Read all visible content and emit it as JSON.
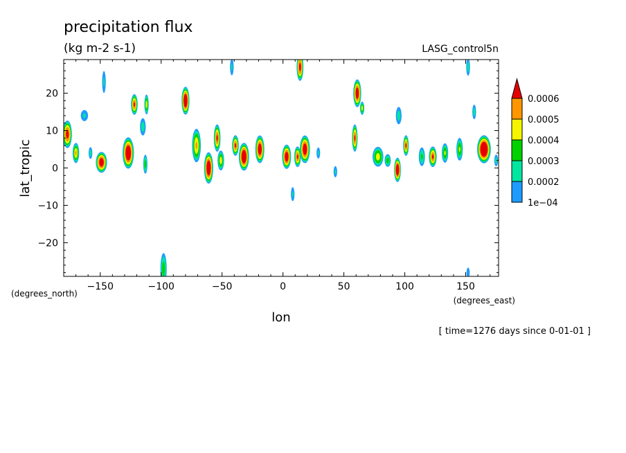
{
  "chart_data": {
    "type": "heatmap",
    "title": "precipitation flux",
    "units": "(kg m-2 s-1)",
    "dataset": "LASG_control5n",
    "xlabel": "lon",
    "ylabel": "lat_tropic",
    "x_unit_label": "(degrees_east)",
    "y_unit_label": "(degrees_north)",
    "time_label": "[ time=1276 days since 0-01-01 ]",
    "xlim": [
      -180,
      177
    ],
    "ylim": [
      -29,
      29
    ],
    "x_ticks": [
      -150,
      -100,
      -50,
      0,
      50,
      100,
      150
    ],
    "y_ticks": [
      -20,
      -10,
      0,
      10,
      20
    ],
    "levels": [
      0.0001,
      0.0002,
      0.0003,
      0.0004,
      0.0005,
      0.0006
    ],
    "level_labels": [
      "1e-04",
      "0.0002",
      "0.0003",
      "0.0004",
      "0.0005",
      "0.0006"
    ],
    "colors": [
      "#ffffff",
      "#1e9bff",
      "#00e6a0",
      "#00d200",
      "#f5f500",
      "#ff9600",
      "#e60000"
    ],
    "cells": [
      {
        "lon": -177,
        "lat": 9,
        "peak": 0.00065,
        "rx": 4,
        "ry": 4
      },
      {
        "lon": -170,
        "lat": 4,
        "peak": 0.0005,
        "rx": 3,
        "ry": 3
      },
      {
        "lon": -163,
        "lat": 14,
        "peak": 0.00022,
        "rx": 4,
        "ry": 2
      },
      {
        "lon": -158,
        "lat": 4,
        "peak": 0.00025,
        "rx": 2,
        "ry": 2
      },
      {
        "lon": -149,
        "lat": 1.5,
        "peak": 0.0007,
        "rx": 5,
        "ry": 3
      },
      {
        "lon": -147,
        "lat": 23,
        "peak": 0.00022,
        "rx": 2,
        "ry": 4
      },
      {
        "lon": -127,
        "lat": 4,
        "peak": 0.00075,
        "rx": 5,
        "ry": 4.5
      },
      {
        "lon": -122,
        "lat": 17,
        "peak": 0.0006,
        "rx": 3,
        "ry": 3
      },
      {
        "lon": -115,
        "lat": 11,
        "peak": 0.00025,
        "rx": 3,
        "ry": 3
      },
      {
        "lon": -112,
        "lat": 17,
        "peak": 0.00045,
        "rx": 2,
        "ry": 3
      },
      {
        "lon": -113,
        "lat": 1,
        "peak": 0.00035,
        "rx": 2,
        "ry": 3
      },
      {
        "lon": -98,
        "lat": -27,
        "peak": 0.00035,
        "rx": 3,
        "ry": 5
      },
      {
        "lon": -80,
        "lat": 18,
        "peak": 0.00075,
        "rx": 3.5,
        "ry": 4
      },
      {
        "lon": -71,
        "lat": 6,
        "peak": 0.0005,
        "rx": 4,
        "ry": 5
      },
      {
        "lon": -61,
        "lat": 0,
        "peak": 0.00075,
        "rx": 4,
        "ry": 4.5
      },
      {
        "lon": -54,
        "lat": 8,
        "peak": 0.0006,
        "rx": 3,
        "ry": 4
      },
      {
        "lon": -51,
        "lat": 2,
        "peak": 0.00045,
        "rx": 3,
        "ry": 3
      },
      {
        "lon": -39,
        "lat": 6,
        "peak": 0.0006,
        "rx": 3,
        "ry": 3
      },
      {
        "lon": -32,
        "lat": 3,
        "peak": 0.00075,
        "rx": 4.5,
        "ry": 4
      },
      {
        "lon": -19,
        "lat": 5,
        "peak": 0.0007,
        "rx": 4,
        "ry": 4
      },
      {
        "lon": -42,
        "lat": 27,
        "peak": 0.00022,
        "rx": 2,
        "ry": 3
      },
      {
        "lon": 3,
        "lat": 3,
        "peak": 0.0007,
        "rx": 4,
        "ry": 3.5
      },
      {
        "lon": 12,
        "lat": 3,
        "peak": 0.0006,
        "rx": 3,
        "ry": 3
      },
      {
        "lon": 18,
        "lat": 5,
        "peak": 0.0007,
        "rx": 4.5,
        "ry": 4
      },
      {
        "lon": 14,
        "lat": 27,
        "peak": 0.00065,
        "rx": 3,
        "ry": 4
      },
      {
        "lon": 8,
        "lat": -7,
        "peak": 0.00022,
        "rx": 2,
        "ry": 2.5
      },
      {
        "lon": 29,
        "lat": 4,
        "peak": 0.00022,
        "rx": 2,
        "ry": 2
      },
      {
        "lon": 43,
        "lat": -1,
        "peak": 0.00022,
        "rx": 2,
        "ry": 2
      },
      {
        "lon": 61,
        "lat": 20,
        "peak": 0.0007,
        "rx": 3.5,
        "ry": 4
      },
      {
        "lon": 59,
        "lat": 8,
        "peak": 0.0006,
        "rx": 2.5,
        "ry": 4
      },
      {
        "lon": 65,
        "lat": 16,
        "peak": 0.00045,
        "rx": 2,
        "ry": 2
      },
      {
        "lon": 78,
        "lat": 3,
        "peak": 0.00045,
        "rx": 5,
        "ry": 3
      },
      {
        "lon": 86,
        "lat": 2,
        "peak": 0.00035,
        "rx": 3,
        "ry": 2
      },
      {
        "lon": 94,
        "lat": -0.5,
        "peak": 0.00075,
        "rx": 3,
        "ry": 3.5
      },
      {
        "lon": 95,
        "lat": 14,
        "peak": 0.00025,
        "rx": 3,
        "ry": 3
      },
      {
        "lon": 101,
        "lat": 6,
        "peak": 0.0006,
        "rx": 2.5,
        "ry": 3
      },
      {
        "lon": 114,
        "lat": 3,
        "peak": 0.00032,
        "rx": 3,
        "ry": 3
      },
      {
        "lon": 123,
        "lat": 3,
        "peak": 0.0006,
        "rx": 3.5,
        "ry": 3
      },
      {
        "lon": 133,
        "lat": 4,
        "peak": 0.0004,
        "rx": 3,
        "ry": 3
      },
      {
        "lon": 145,
        "lat": 5,
        "peak": 0.0004,
        "rx": 3,
        "ry": 3.5
      },
      {
        "lon": 157,
        "lat": 15,
        "peak": 0.00025,
        "rx": 2,
        "ry": 2.5
      },
      {
        "lon": 152,
        "lat": 27,
        "peak": 0.00025,
        "rx": 2,
        "ry": 3
      },
      {
        "lon": 152,
        "lat": -28,
        "peak": 0.00018,
        "rx": 2,
        "ry": 2
      },
      {
        "lon": 165,
        "lat": 5,
        "peak": 0.0008,
        "rx": 6,
        "ry": 4
      },
      {
        "lon": 175,
        "lat": 2,
        "peak": 0.00025,
        "rx": 2,
        "ry": 2
      }
    ]
  }
}
